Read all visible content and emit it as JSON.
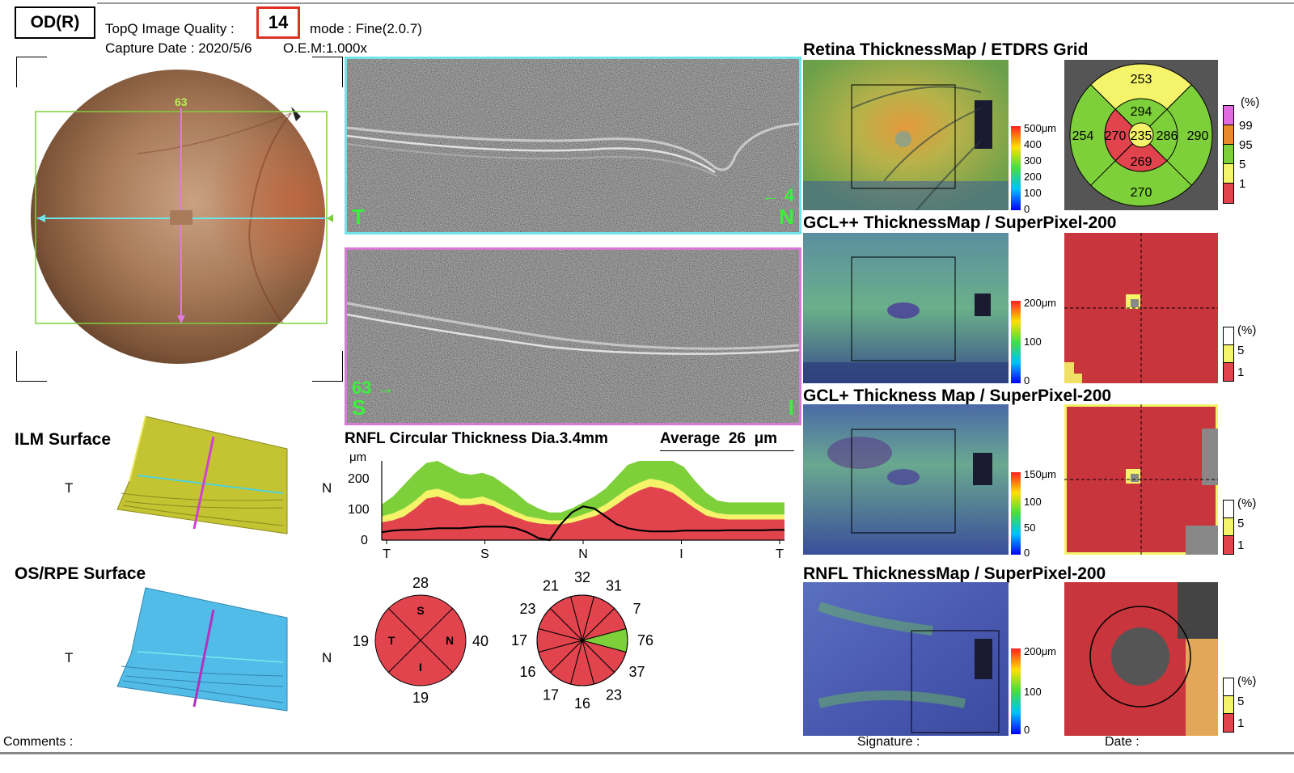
{
  "header": {
    "eye": "OD(R)",
    "quality_label": "TopQ Image Quality :",
    "quality_value": "14",
    "mode": "mode : Fine(2.0.7)",
    "capture": "Capture Date : 2020/5/6",
    "oem": "O.E.M:1.000x"
  },
  "fundus": {
    "scan_number": "63"
  },
  "oct_top": {
    "left": "T",
    "right": "N",
    "arrow_num": "4"
  },
  "oct_bottom": {
    "left": "S",
    "right": "I",
    "arrow_num": "63"
  },
  "surfaces": {
    "ilm": {
      "title": "ILM Surface",
      "left": "T",
      "right": "N"
    },
    "rpe": {
      "title": "OS/RPE Surface",
      "left": "T",
      "right": "N"
    }
  },
  "rnfl_chart": {
    "title": "RNFL Circular Thickness Dia.3.4mm",
    "avg_label": "Average",
    "avg_value": "26",
    "avg_unit": "μm",
    "y_unit": "μm",
    "y_ticks": [
      "200",
      "100",
      "0"
    ],
    "x_ticks": [
      "T",
      "S",
      "N",
      "I",
      "T"
    ]
  },
  "chart_data": {
    "type": "line",
    "title": "RNFL Circular Thickness Dia.3.4mm",
    "ylabel": "μm",
    "ylim": [
      0,
      250
    ],
    "x_ticks": [
      "T",
      "S",
      "N",
      "I",
      "T"
    ],
    "x": [
      0,
      10,
      20,
      30,
      40,
      50,
      60,
      70,
      80,
      90,
      100,
      110,
      120,
      130,
      140,
      150,
      160,
      170,
      180,
      190,
      200,
      210,
      220,
      230,
      240,
      250,
      260,
      270,
      280,
      290,
      300,
      310,
      320,
      330,
      340,
      350,
      360
    ],
    "series": [
      {
        "values": [
          20,
          24,
          26,
          26,
          28,
          30,
          30,
          30,
          32,
          34,
          34,
          34,
          30,
          20,
          5,
          0,
          40,
          70,
          85,
          80,
          60,
          40,
          30,
          25,
          22,
          22,
          22,
          24,
          24,
          24,
          24,
          25,
          25,
          25,
          25,
          26,
          26
        ]
      }
    ],
    "bands": {
      "green_upper": [
        90,
        110,
        140,
        170,
        195,
        200,
        185,
        170,
        165,
        170,
        160,
        140,
        120,
        95,
        80,
        70,
        70,
        80,
        95,
        110,
        130,
        160,
        190,
        205,
        220,
        220,
        210,
        185,
        150,
        120,
        100,
        95,
        95,
        95,
        95,
        95,
        95
      ],
      "yellow_upper": [
        60,
        68,
        80,
        100,
        125,
        130,
        120,
        105,
        105,
        110,
        100,
        85,
        72,
        60,
        55,
        50,
        50,
        55,
        65,
        75,
        90,
        110,
        130,
        145,
        155,
        150,
        140,
        120,
        95,
        78,
        68,
        65,
        65,
        65,
        65,
        65,
        65
      ],
      "red_upper": [
        45,
        50,
        60,
        80,
        105,
        110,
        100,
        88,
        88,
        92,
        85,
        70,
        58,
        48,
        42,
        40,
        40,
        44,
        52,
        60,
        72,
        90,
        110,
        125,
        135,
        130,
        120,
        100,
        80,
        62,
        55,
        52,
        52,
        52,
        52,
        52,
        52
      ]
    }
  },
  "quadrant": {
    "S": "28",
    "T": "19",
    "N": "40",
    "I": "19",
    "labels": {
      "S": "S",
      "T": "T",
      "N": "N",
      "I": "I"
    }
  },
  "clock": {
    "values": [
      "32",
      "31",
      "7",
      "76",
      "37",
      "23",
      "16",
      "17",
      "16",
      "17",
      "23",
      "21"
    ]
  },
  "maps": {
    "retina_title": "Retina ThicknessMap / ETDRS Grid",
    "gclpp_title": "GCL++ ThicknessMap / SuperPixel-200",
    "gclp_title": "GCL+ Thickness Map / SuperPixel-200",
    "rnfl_title": "RNFL ThicknessMap / SuperPixel-200",
    "retina_scale": [
      "500μm",
      "400",
      "300",
      "200",
      "100",
      "0"
    ],
    "gclpp_scale": [
      "200μm",
      "100",
      "0"
    ],
    "gclp_scale": [
      "150μm",
      "100",
      "50",
      "0"
    ],
    "rnfl_scale": [
      "200μm",
      "100",
      "0"
    ]
  },
  "etdrs": {
    "center": "235",
    "inner_superior": "294",
    "inner_temporal": "270",
    "inner_nasal": "286",
    "inner_inferior": "269",
    "outer_superior": "253",
    "outer_temporal": "254",
    "outer_nasal": "290",
    "outer_inferior": "270"
  },
  "legend_etdrs": [
    "(%)",
    "99",
    "95",
    "5",
    "1"
  ],
  "legend_sp": [
    "(%)",
    "5",
    "1"
  ],
  "colors": {
    "normal": "#7ed03a",
    "borderline": "#f4f36a",
    "abnormal": "#e2444e",
    "superior": "#ff66ff",
    "accent_cyan": "#6ee3e8",
    "accent_magenta": "#d57ad5",
    "quality_box": "#e03020"
  },
  "footer": {
    "comments": "Comments :",
    "signature": "Signature :",
    "date": "Date :"
  }
}
